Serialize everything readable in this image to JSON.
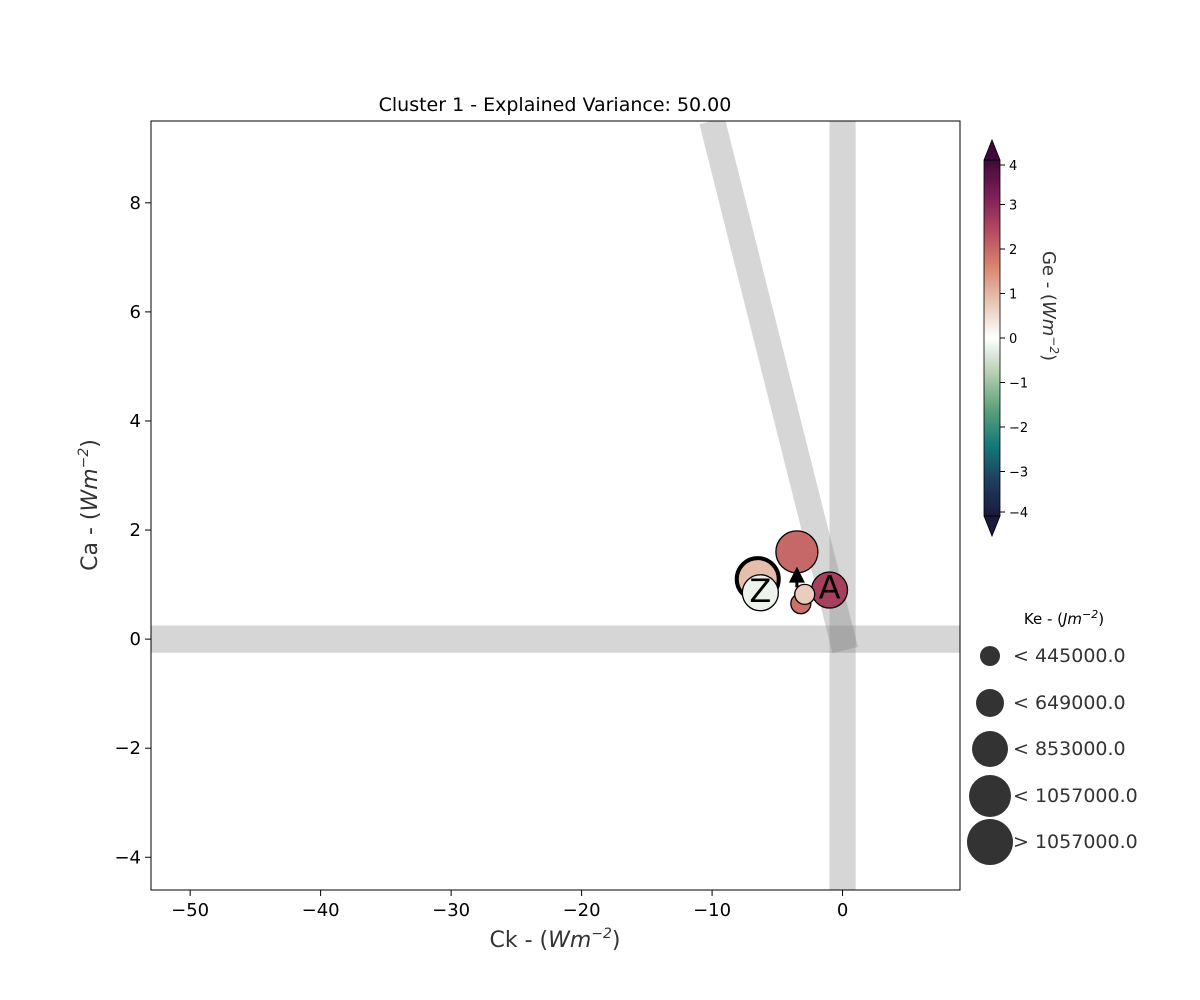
{
  "chart_data": {
    "type": "scatter",
    "title": "Cluster 1 - Explained Variance: 50.00",
    "xlabel": {
      "prefix": "Ck - (",
      "var": "Wm",
      "sup": "−2",
      "suffix": ")"
    },
    "ylabel": {
      "prefix": "Ca - (",
      "var": "Wm",
      "sup": "−2",
      "suffix": ")"
    },
    "xlim": [
      -53,
      9
    ],
    "ylim": [
      -4.6,
      9.5
    ],
    "xticks": [
      -50,
      -40,
      -30,
      -20,
      -10,
      0
    ],
    "yticks": [
      -4,
      -2,
      0,
      2,
      4,
      6,
      8
    ],
    "xtick_labels": [
      "−50",
      "−40",
      "−30",
      "−20",
      "−10",
      "0"
    ],
    "ytick_labels": [
      "−4",
      "−2",
      "0",
      "2",
      "4",
      "6",
      "8"
    ],
    "grid": false,
    "reference_bands": [
      {
        "kind": "horizontal",
        "y": 0,
        "halfwidth": 0.25
      },
      {
        "kind": "vertical",
        "x": 0,
        "halfwidth": 1.0
      },
      {
        "kind": "line",
        "x1": -10,
        "y1": 9.5,
        "x2": 0.2,
        "y2": -0.2,
        "halfwidth": 1.0
      }
    ],
    "points": [
      {
        "x": -3.5,
        "y": 1.6,
        "ge": 2.0,
        "ke_class": 3
      },
      {
        "x": -6.5,
        "y": 1.1,
        "ge": 0.9,
        "ke_class": 3,
        "bold_edge": true
      },
      {
        "x": -6.3,
        "y": 0.85,
        "ge": -0.2,
        "ke_class": 2
      },
      {
        "x": -1.0,
        "y": 0.9,
        "ge": 2.6,
        "ke_class": 2
      },
      {
        "x": -3.2,
        "y": 0.65,
        "ge": 1.9,
        "ke_class": 0
      },
      {
        "x": -2.9,
        "y": 0.82,
        "ge": 0.7,
        "ke_class": 0
      }
    ],
    "start_marker": {
      "x": -6.3,
      "y": 0.88,
      "label": "Z"
    },
    "end_marker": {
      "x": -1.0,
      "y": 0.95,
      "label": "A"
    },
    "arrow": {
      "x1": -3.5,
      "y1": 0.95,
      "x2": -3.5,
      "y2": 1.33
    },
    "colorbar": {
      "label": {
        "prefix": "Ge - (",
        "var": "Wm",
        "sup": "−2",
        "suffix": ")"
      },
      "min": -4,
      "max": 4,
      "ticks": [
        4,
        3,
        2,
        1,
        0,
        -1,
        -2,
        -3,
        -4
      ],
      "tick_labels": [
        "4",
        "3",
        "2",
        "1",
        "0",
        "−1",
        "−2",
        "−3",
        "−4"
      ],
      "colors": [
        "#1a1a3d",
        "#1c3f5e",
        "#147a7a",
        "#5ea07a",
        "#b3ceb0",
        "#ffffff",
        "#e8c6b4",
        "#d88670",
        "#b64a60",
        "#7a1f58",
        "#3d0a38"
      ],
      "extend": "both"
    },
    "size_legend": {
      "title": {
        "prefix": "Ke - (",
        "var": "Jm",
        "sup": "−2",
        "suffix": ")"
      },
      "entries": [
        "< 445000.0",
        "< 649000.0",
        "< 853000.0",
        "< 1057000.0",
        "> 1057000.0"
      ],
      "marker_color": "#333333"
    }
  }
}
